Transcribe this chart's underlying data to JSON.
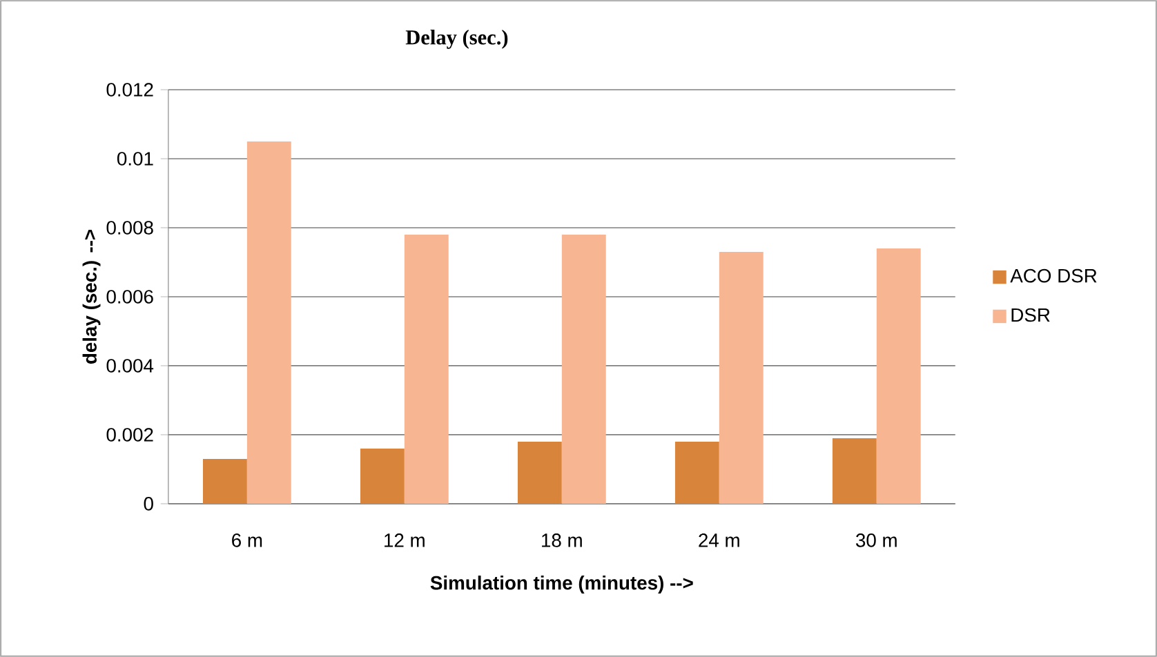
{
  "chart_data": {
    "type": "bar",
    "title": "Delay (sec.)",
    "xlabel": "Simulation time (minutes) -->",
    "ylabel": "delay (sec.) -->",
    "categories": [
      "6  m",
      "12 m",
      "18 m",
      "24 m",
      "30 m"
    ],
    "series": [
      {
        "name": "ACO DSR",
        "color": "#d9843b",
        "values": [
          0.0013,
          0.0016,
          0.0018,
          0.0018,
          0.0019
        ]
      },
      {
        "name": "DSR",
        "color": "#f7b592",
        "values": [
          0.0105,
          0.0078,
          0.0078,
          0.0073,
          0.0074
        ]
      }
    ],
    "ylim": [
      0,
      0.012
    ],
    "yticks": [
      0,
      0.002,
      0.004,
      0.006,
      0.008,
      0.01,
      0.012
    ],
    "grid": "y",
    "legend": "right"
  }
}
